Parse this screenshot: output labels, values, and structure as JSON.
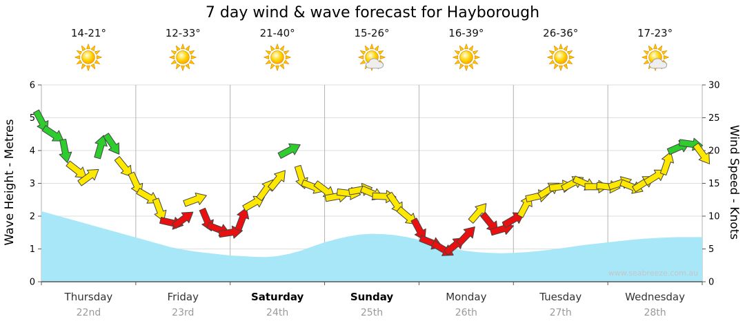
{
  "title": "7 day wind & wave forecast for Hayborough",
  "watermark": "www.seabreeze.com.au",
  "left_axis": {
    "label": "Wave Height - Metres",
    "ticks": [
      0,
      1,
      2,
      3,
      4,
      5,
      6
    ]
  },
  "right_axis": {
    "label": "Wind Speed - Knots",
    "ticks": [
      0,
      5,
      10,
      15,
      20,
      25,
      30
    ]
  },
  "days": [
    {
      "name": "Thursday",
      "date": "22nd",
      "temps": "14-21°",
      "icon": "sun",
      "weekend": false
    },
    {
      "name": "Friday",
      "date": "23rd",
      "temps": "12-33°",
      "icon": "sun",
      "weekend": false
    },
    {
      "name": "Saturday",
      "date": "24th",
      "temps": "21-40°",
      "icon": "sun",
      "weekend": true
    },
    {
      "name": "Sunday",
      "date": "25th",
      "temps": "15-26°",
      "icon": "sun-cloud",
      "weekend": true
    },
    {
      "name": "Monday",
      "date": "26th",
      "temps": "16-39°",
      "icon": "sun",
      "weekend": false
    },
    {
      "name": "Tuesday",
      "date": "27th",
      "temps": "26-36°",
      "icon": "sun",
      "weekend": false
    },
    {
      "name": "Wednesday",
      "date": "28th",
      "temps": "17-23°",
      "icon": "sun-cloud",
      "weekend": false
    }
  ],
  "chart_data": {
    "type": "area+wind-barbs",
    "x_unit": "7 days (Thu 22nd to Wed 28th), 8 samples per day",
    "ylim_wave": [
      0,
      6
    ],
    "ylim_wind": [
      0,
      30
    ],
    "wave_fill": "#A8E7F8",
    "wind_color_scale": [
      {
        "max_knots": 10,
        "color": "#E81010",
        "meaning": "light (<10 kn)"
      },
      {
        "max_knots": 20,
        "color": "#FFE800",
        "meaning": "moderate (10-20 kn)"
      },
      {
        "max_knots": 31,
        "color": "#2ECC2E",
        "meaning": "fresh (20+ kn)"
      }
    ],
    "wave_height_m": [
      2.15,
      2.05,
      1.95,
      1.85,
      1.75,
      1.65,
      1.55,
      1.45,
      1.35,
      1.25,
      1.15,
      1.05,
      0.98,
      0.92,
      0.88,
      0.84,
      0.8,
      0.78,
      0.76,
      0.75,
      0.78,
      0.85,
      0.95,
      1.08,
      1.2,
      1.3,
      1.38,
      1.44,
      1.46,
      1.45,
      1.42,
      1.36,
      1.28,
      1.18,
      1.08,
      1.0,
      0.94,
      0.9,
      0.88,
      0.87,
      0.88,
      0.9,
      0.93,
      0.97,
      1.02,
      1.07,
      1.12,
      1.16,
      1.2,
      1.24,
      1.28,
      1.31,
      1.33,
      1.35,
      1.36,
      1.36,
      1.36
    ],
    "wind_knots": [
      24.5,
      22.5,
      20,
      17,
      16,
      20.5,
      21,
      17.5,
      15,
      13,
      11,
      9,
      9.5,
      12.5,
      9.5,
      8,
      7.5,
      9.5,
      12,
      14,
      15.5,
      20,
      16,
      14.5,
      14,
      13,
      13.5,
      14,
      13.5,
      13,
      12,
      10,
      8,
      6,
      5,
      5.5,
      7,
      10.5,
      9,
      8,
      9.5,
      11.5,
      13,
      14,
      14.5,
      15,
      15,
      14.5,
      14.5,
      15,
      14.5,
      15,
      16,
      18,
      20.5,
      21,
      19.5
    ]
  }
}
